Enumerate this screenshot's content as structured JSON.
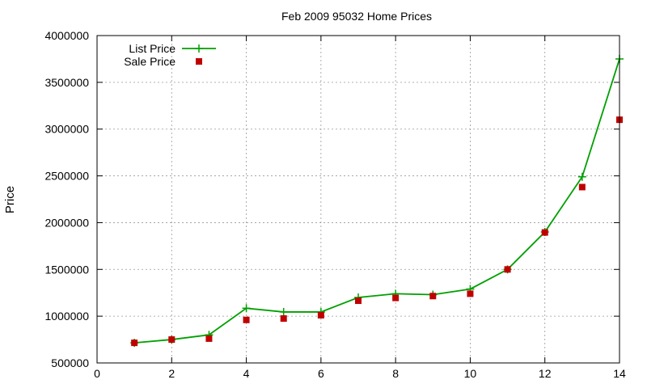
{
  "chart_data": {
    "type": "line",
    "title": "Feb 2009 95032 Home Prices",
    "xlabel": "",
    "ylabel": "Price",
    "xlim": [
      0,
      14
    ],
    "ylim": [
      500000,
      4000000
    ],
    "xticks": [
      "0",
      "2",
      "4",
      "6",
      "8",
      "10",
      "12",
      "14"
    ],
    "yticks": [
      "500000",
      "1000000",
      "1500000",
      "2000000",
      "2500000",
      "3000000",
      "3500000",
      "4000000"
    ],
    "grid": true,
    "legend_position": "top-left",
    "series": [
      {
        "name": "List Price",
        "style": "line+cross",
        "color": "#00a000",
        "x": [
          1,
          2,
          3,
          4,
          5,
          6,
          7,
          8,
          9,
          10,
          11,
          12,
          13,
          14
        ],
        "y": [
          715000,
          750000,
          800000,
          1085000,
          1045000,
          1045000,
          1200000,
          1240000,
          1230000,
          1290000,
          1500000,
          1900000,
          2490000,
          3750000
        ]
      },
      {
        "name": "Sale Price",
        "style": "square",
        "color": "#c00000",
        "x": [
          1,
          2,
          3,
          4,
          5,
          6,
          7,
          8,
          9,
          10,
          11,
          12,
          13,
          14
        ],
        "y": [
          715000,
          750000,
          760000,
          960000,
          975000,
          1010000,
          1165000,
          1195000,
          1215000,
          1240000,
          1500000,
          1895000,
          2380000,
          3100000
        ]
      }
    ]
  }
}
